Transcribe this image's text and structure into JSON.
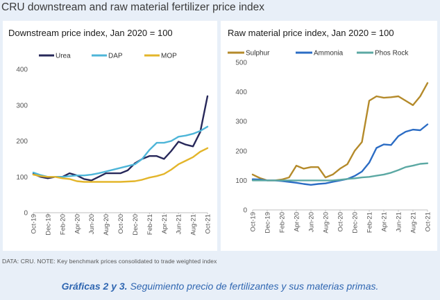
{
  "header": {
    "title": "CRU downstream and raw material fertilizer price index"
  },
  "footer": {
    "note": "DATA: CRU. NOTE: Key benchmark prices consolidated to trade weighted index",
    "caption_bold": "Gráficas 2 y 3.",
    "caption_text": " Seguimiento precio de fertilizantes y sus materias primas."
  },
  "chart_data": [
    {
      "type": "line",
      "title": "Downstream price index, Jan 2020 = 100",
      "xlabel": "",
      "ylabel": "",
      "ylim": [
        0,
        400
      ],
      "yticks": [
        0,
        100,
        200,
        300,
        400
      ],
      "x_start": "2019-10",
      "x_end": "2021-10",
      "xticks": [
        "Oct-19",
        "Dec-19",
        "Feb-20",
        "Apr-20",
        "Jun-20",
        "Aug-20",
        "Oct-20",
        "Dec-20",
        "Feb-21",
        "Apr-21",
        "Jun-21",
        "Aug-21",
        "Oct-21"
      ],
      "grid": false,
      "legend": "top",
      "series": [
        {
          "name": "Urea",
          "color": "#27285a",
          "values": [
            [
              "2019-10",
              108
            ],
            [
              "2019-11",
              100
            ],
            [
              "2019-12",
              96
            ],
            [
              "2020-01",
              100
            ],
            [
              "2020-02",
              100
            ],
            [
              "2020-03",
              110
            ],
            [
              "2020-04",
              104
            ],
            [
              "2020-05",
              94
            ],
            [
              "2020-06",
              90
            ],
            [
              "2020-07",
              100
            ],
            [
              "2020-08",
              110
            ],
            [
              "2020-09",
              110
            ],
            [
              "2020-10",
              110
            ],
            [
              "2020-11",
              118
            ],
            [
              "2020-12",
              138
            ],
            [
              "2021-01",
              150
            ],
            [
              "2021-02",
              158
            ],
            [
              "2021-03",
              158
            ],
            [
              "2021-04",
              150
            ],
            [
              "2021-05",
              172
            ],
            [
              "2021-06",
              198
            ],
            [
              "2021-07",
              190
            ],
            [
              "2021-08",
              185
            ],
            [
              "2021-09",
              225
            ],
            [
              "2021-10",
              325
            ]
          ]
        },
        {
          "name": "DAP",
          "color": "#4db5d8",
          "values": [
            [
              "2019-10",
              112
            ],
            [
              "2019-11",
              105
            ],
            [
              "2019-12",
              100
            ],
            [
              "2020-01",
              100
            ],
            [
              "2020-02",
              100
            ],
            [
              "2020-03",
              102
            ],
            [
              "2020-04",
              104
            ],
            [
              "2020-05",
              104
            ],
            [
              "2020-06",
              106
            ],
            [
              "2020-07",
              110
            ],
            [
              "2020-08",
              115
            ],
            [
              "2020-09",
              120
            ],
            [
              "2020-10",
              125
            ],
            [
              "2020-11",
              130
            ],
            [
              "2020-12",
              135
            ],
            [
              "2021-01",
              150
            ],
            [
              "2021-02",
              175
            ],
            [
              "2021-03",
              195
            ],
            [
              "2021-04",
              195
            ],
            [
              "2021-05",
              200
            ],
            [
              "2021-06",
              212
            ],
            [
              "2021-07",
              215
            ],
            [
              "2021-08",
              220
            ],
            [
              "2021-09",
              228
            ],
            [
              "2021-10",
              240
            ]
          ]
        },
        {
          "name": "MOP",
          "color": "#e3b52a",
          "values": [
            [
              "2019-10",
              106
            ],
            [
              "2019-11",
              102
            ],
            [
              "2019-12",
              100
            ],
            [
              "2020-01",
              100
            ],
            [
              "2020-02",
              96
            ],
            [
              "2020-03",
              94
            ],
            [
              "2020-04",
              88
            ],
            [
              "2020-05",
              86
            ],
            [
              "2020-06",
              86
            ],
            [
              "2020-07",
              86
            ],
            [
              "2020-08",
              86
            ],
            [
              "2020-09",
              86
            ],
            [
              "2020-10",
              86
            ],
            [
              "2020-11",
              87
            ],
            [
              "2020-12",
              88
            ],
            [
              "2021-01",
              92
            ],
            [
              "2021-02",
              98
            ],
            [
              "2021-03",
              102
            ],
            [
              "2021-04",
              108
            ],
            [
              "2021-05",
              120
            ],
            [
              "2021-06",
              135
            ],
            [
              "2021-07",
              145
            ],
            [
              "2021-08",
              155
            ],
            [
              "2021-09",
              170
            ],
            [
              "2021-10",
              180
            ]
          ]
        }
      ]
    },
    {
      "type": "line",
      "title": "Raw material price index, Jan 2020 = 100",
      "xlabel": "",
      "ylabel": "",
      "ylim": [
        0,
        500
      ],
      "yticks": [
        0,
        100,
        200,
        300,
        400,
        500
      ],
      "x_start": "2019-10",
      "x_end": "2021-10",
      "xticks": [
        "Oct-19",
        "Dec-19",
        "Feb-20",
        "Apr-20",
        "Jun-20",
        "Aug-20",
        "Oct-20",
        "Dec-20",
        "Feb-21",
        "Apr-21",
        "Jun-21",
        "Aug-21",
        "Oct-21"
      ],
      "grid": false,
      "legend": "top",
      "series": [
        {
          "name": "Sulphur",
          "color": "#b48a2a",
          "values": [
            [
              "2019-10",
              120
            ],
            [
              "2019-11",
              108
            ],
            [
              "2019-12",
              100
            ],
            [
              "2020-01",
              100
            ],
            [
              "2020-02",
              103
            ],
            [
              "2020-03",
              110
            ],
            [
              "2020-04",
              150
            ],
            [
              "2020-05",
              140
            ],
            [
              "2020-06",
              145
            ],
            [
              "2020-07",
              145
            ],
            [
              "2020-08",
              110
            ],
            [
              "2020-09",
              120
            ],
            [
              "2020-10",
              140
            ],
            [
              "2020-11",
              155
            ],
            [
              "2020-12",
              200
            ],
            [
              "2021-01",
              230
            ],
            [
              "2021-02",
              370
            ],
            [
              "2021-03",
              385
            ],
            [
              "2021-04",
              380
            ],
            [
              "2021-05",
              382
            ],
            [
              "2021-06",
              385
            ],
            [
              "2021-07",
              370
            ],
            [
              "2021-08",
              355
            ],
            [
              "2021-09",
              385
            ],
            [
              "2021-10",
              430
            ]
          ]
        },
        {
          "name": "Ammonia",
          "color": "#2b6cc4",
          "values": [
            [
              "2019-10",
              104
            ],
            [
              "2019-11",
              103
            ],
            [
              "2019-12",
              100
            ],
            [
              "2020-01",
              100
            ],
            [
              "2020-02",
              98
            ],
            [
              "2020-03",
              95
            ],
            [
              "2020-04",
              92
            ],
            [
              "2020-05",
              88
            ],
            [
              "2020-06",
              85
            ],
            [
              "2020-07",
              88
            ],
            [
              "2020-08",
              90
            ],
            [
              "2020-09",
              95
            ],
            [
              "2020-10",
              100
            ],
            [
              "2020-11",
              105
            ],
            [
              "2020-12",
              115
            ],
            [
              "2021-01",
              130
            ],
            [
              "2021-02",
              160
            ],
            [
              "2021-03",
              210
            ],
            [
              "2021-04",
              222
            ],
            [
              "2021-05",
              220
            ],
            [
              "2021-06",
              250
            ],
            [
              "2021-07",
              265
            ],
            [
              "2021-08",
              272
            ],
            [
              "2021-09",
              270
            ],
            [
              "2021-10",
              290
            ]
          ]
        },
        {
          "name": "Phos Rock",
          "color": "#5ba8a3",
          "values": [
            [
              "2019-10",
              100
            ],
            [
              "2019-11",
              100
            ],
            [
              "2019-12",
              100
            ],
            [
              "2020-01",
              100
            ],
            [
              "2020-02",
              100
            ],
            [
              "2020-03",
              100
            ],
            [
              "2020-04",
              100
            ],
            [
              "2020-05",
              100
            ],
            [
              "2020-06",
              100
            ],
            [
              "2020-07",
              100
            ],
            [
              "2020-08",
              100
            ],
            [
              "2020-09",
              100
            ],
            [
              "2020-10",
              102
            ],
            [
              "2020-11",
              105
            ],
            [
              "2020-12",
              107
            ],
            [
              "2021-01",
              110
            ],
            [
              "2021-02",
              112
            ],
            [
              "2021-03",
              116
            ],
            [
              "2021-04",
              120
            ],
            [
              "2021-05",
              126
            ],
            [
              "2021-06",
              135
            ],
            [
              "2021-07",
              145
            ],
            [
              "2021-08",
              150
            ],
            [
              "2021-09",
              156
            ],
            [
              "2021-10",
              158
            ]
          ]
        }
      ]
    }
  ]
}
